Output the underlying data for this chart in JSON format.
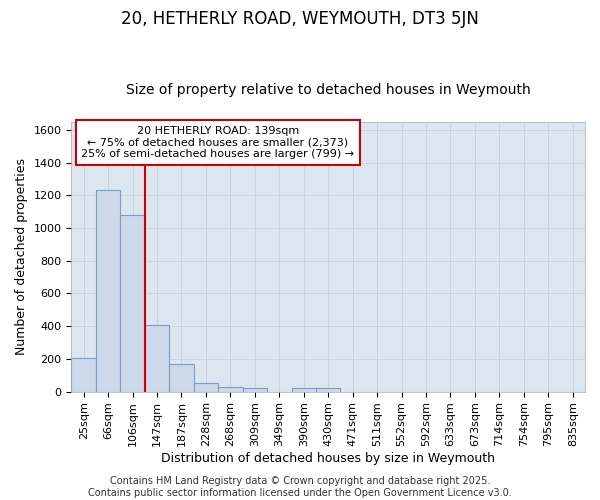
{
  "title": "20, HETHERLY ROAD, WEYMOUTH, DT3 5JN",
  "subtitle": "Size of property relative to detached houses in Weymouth",
  "xlabel": "Distribution of detached houses by size in Weymouth",
  "ylabel": "Number of detached properties",
  "categories": [
    "25sqm",
    "66sqm",
    "106sqm",
    "147sqm",
    "187sqm",
    "228sqm",
    "268sqm",
    "309sqm",
    "349sqm",
    "390sqm",
    "430sqm",
    "471sqm",
    "511sqm",
    "552sqm",
    "592sqm",
    "633sqm",
    "673sqm",
    "714sqm",
    "754sqm",
    "795sqm",
    "835sqm"
  ],
  "values": [
    205,
    1235,
    1080,
    410,
    170,
    50,
    30,
    20,
    0,
    20,
    20,
    0,
    0,
    0,
    0,
    0,
    0,
    0,
    0,
    0,
    0
  ],
  "bar_color": "#ccd9ea",
  "bar_edge_color": "#7a9ec0",
  "grid_color": "#c8d4e3",
  "background_color": "#dce6f0",
  "vline_color": "#cc0000",
  "vline_pos": 2.5,
  "annotation_text": "20 HETHERLY ROAD: 139sqm\n← 75% of detached houses are smaller (2,373)\n25% of semi-detached houses are larger (799) →",
  "annotation_box_color": "#cc0000",
  "ylim": [
    0,
    1650
  ],
  "yticks": [
    0,
    200,
    400,
    600,
    800,
    1000,
    1200,
    1400,
    1600
  ],
  "footer": "Contains HM Land Registry data © Crown copyright and database right 2025.\nContains public sector information licensed under the Open Government Licence v3.0.",
  "title_fontsize": 12,
  "subtitle_fontsize": 10,
  "axis_label_fontsize": 9,
  "tick_fontsize": 8,
  "footer_fontsize": 7,
  "ann_fontsize": 8
}
